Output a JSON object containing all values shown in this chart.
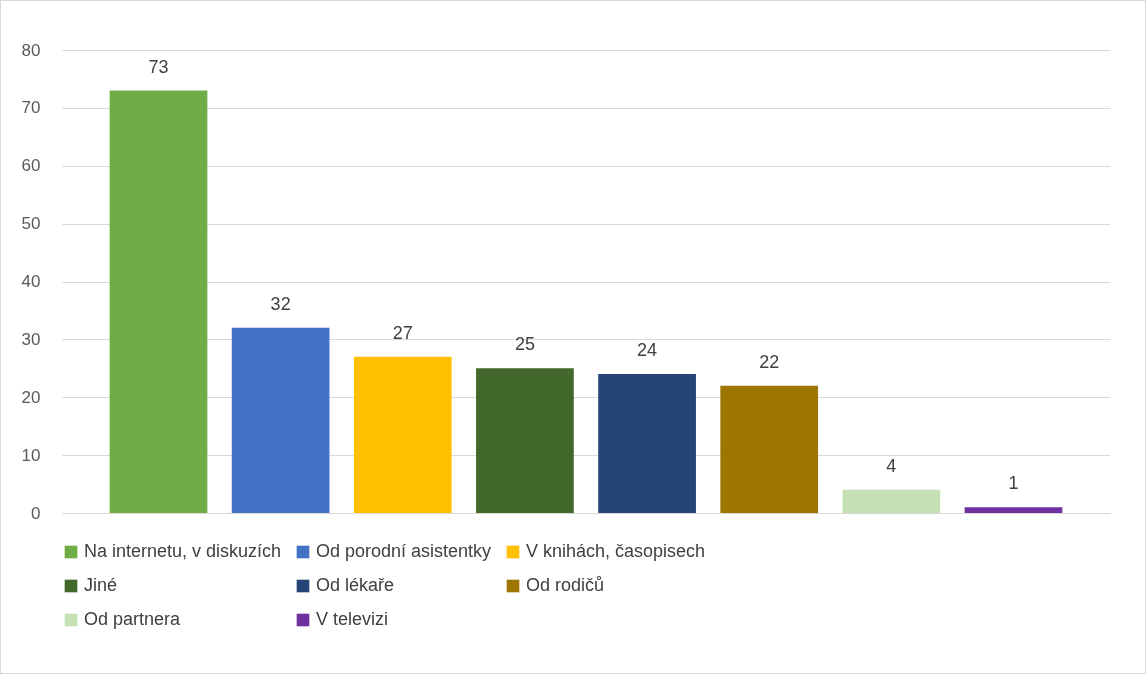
{
  "chart_data": {
    "type": "bar",
    "categories": [
      null
    ],
    "series": [
      {
        "name": "Na internetu, v diskuzích",
        "color": "#70ad47",
        "values": [
          73
        ]
      },
      {
        "name": "Od porodní asistentky",
        "color": "#4472c4",
        "values": [
          32
        ]
      },
      {
        "name": "V knihách, časopisech",
        "color": "#ffc000",
        "values": [
          27
        ]
      },
      {
        "name": "Jiné",
        "color": "#43682b",
        "values": [
          25
        ]
      },
      {
        "name": "Od lékaře",
        "color": "#264478",
        "values": [
          24
        ]
      },
      {
        "name": "Od rodičů",
        "color": "#9e7500",
        "values": [
          22
        ]
      },
      {
        "name": "Od partnera",
        "color": "#c5e0b4",
        "values": [
          4
        ]
      },
      {
        "name": "V televizi",
        "color": "#7030a0",
        "values": [
          1
        ]
      }
    ],
    "ylim": [
      0,
      80
    ],
    "yticks": [
      0,
      10,
      20,
      30,
      40,
      50,
      60,
      70,
      80
    ],
    "grid": "y",
    "data_labels": true,
    "legend": "bottom"
  }
}
